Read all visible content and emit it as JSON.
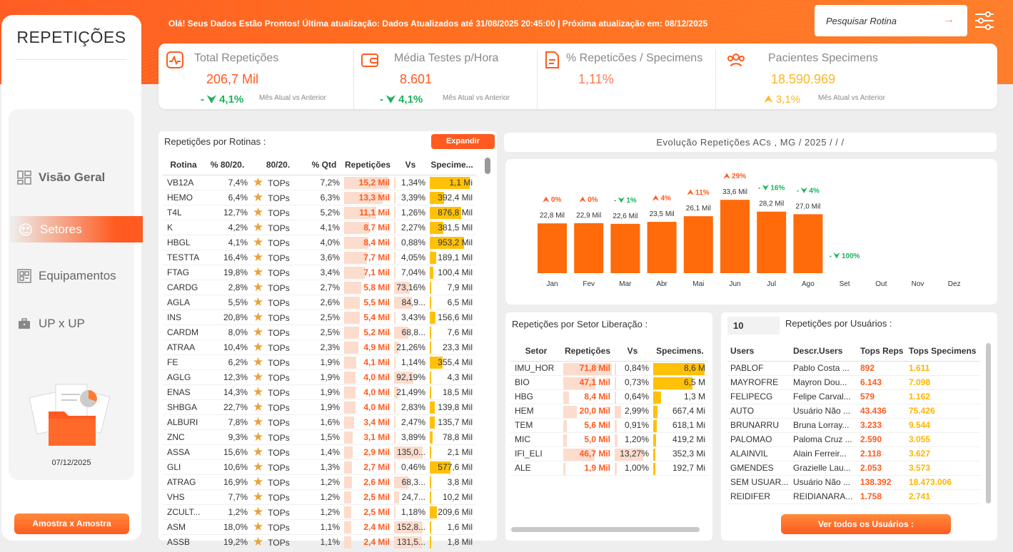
{
  "header": {
    "message": "Olá! Seus Dados Estão Prontos! Última atualização: Dados Atualizados até 31/08/2025 20:45:00 | Próxima atualização em: 08/12/2025",
    "search_placeholder": "Pesquisar Rotina"
  },
  "sidebar": {
    "title": "REPETIÇÕES",
    "items": [
      {
        "label": "Visão Geral",
        "icon": "dashboard-icon"
      },
      {
        "label": "Setores",
        "icon": "palette-icon"
      },
      {
        "label": "Equipamentos",
        "icon": "equipment-icon"
      },
      {
        "label": "UP x UP",
        "icon": "briefcase-icon"
      }
    ],
    "date": "07/12/2025",
    "button": "Amostra x Amostra"
  },
  "kpis": [
    {
      "title": "Total Repetições",
      "value": "206,7 Mil",
      "delta": "- ⮟ 4,1%",
      "compare": "Mês Atual vs Anterior",
      "icon": "pulse-icon"
    },
    {
      "title": "Média Testes p/Hora",
      "value": "8.601",
      "delta": "- ⮟ 4,1%",
      "compare": "Mês Atual vs Anterior",
      "icon": "wallet-icon"
    },
    {
      "title": "% Repeticões / Specimens",
      "value": "1,11%",
      "delta": "",
      "compare": "",
      "icon": "document-icon"
    },
    {
      "title": "Pacientes Specimens",
      "value": "18.590.969",
      "delta": "⮝ 3,1%",
      "compare": "Mês Atual vs Anterior",
      "icon": "users-icon"
    }
  ],
  "rotinas": {
    "title": "Repetições por Rotinas :",
    "expand": "Expandir",
    "columns": [
      "Rotina",
      "% 80/20.",
      "80/20.",
      "% Qtd",
      "Repetições",
      "Vs",
      "Specime..."
    ],
    "rows": [
      [
        "VB12A",
        "7,4%",
        "TOPs",
        "7,2%",
        "15,2 Mil",
        "1,34%",
        "1,1 Mi",
        1.0,
        0.01,
        0.96
      ],
      [
        "HEMO",
        "6,4%",
        "TOPs",
        "6,3%",
        "13,3 Mil",
        "3,39%",
        "392,4 Mil",
        0.875,
        0.025,
        0.34
      ],
      [
        "T4L",
        "12,7%",
        "TOPs",
        "5,2%",
        "11,1 Mil",
        "1,26%",
        "876,8 Mil",
        0.73,
        0.01,
        0.76
      ],
      [
        "K",
        "4,2%",
        "TOPs",
        "4,1%",
        "8,7 Mil",
        "2,27%",
        "381,5 Mil",
        0.57,
        0.017,
        0.33
      ],
      [
        "HBGL",
        "4,1%",
        "TOPs",
        "4,0%",
        "8,4 Mil",
        "0,88%",
        "953,2 Mil",
        0.55,
        0.007,
        0.83
      ],
      [
        "TESTTA",
        "16,4%",
        "TOPs",
        "3,6%",
        "7,7 Mil",
        "4,05%",
        "189,1 Mil",
        0.51,
        0.03,
        0.16
      ],
      [
        "FTAG",
        "19,8%",
        "TOPs",
        "3,4%",
        "7,1 Mil",
        "7,04%",
        "100,4 Mil",
        0.47,
        0.052,
        0.09
      ],
      [
        "CARDG",
        "2,8%",
        "TOPs",
        "2,7%",
        "5,8 Mil",
        "73,16%",
        "7,9 Mil",
        0.38,
        0.54,
        0.01
      ],
      [
        "AGLA",
        "5,5%",
        "TOPs",
        "2,6%",
        "5,5 Mil",
        "84,9...",
        "6,5 Mil",
        0.36,
        0.63,
        0.01
      ],
      [
        "INS",
        "20,8%",
        "TOPs",
        "2,5%",
        "5,4 Mil",
        "3,43%",
        "156,6 Mil",
        0.355,
        0.025,
        0.14
      ],
      [
        "CARDM",
        "8,0%",
        "TOPs",
        "2,5%",
        "5,2 Mil",
        "68,8...",
        "7,6 Mil",
        0.34,
        0.51,
        0.01
      ],
      [
        "ATRAA",
        "10,4%",
        "TOPs",
        "2,3%",
        "4,9 Mil",
        "21,26%",
        "23,3 Mil",
        0.32,
        0.16,
        0.02
      ],
      [
        "FE",
        "6,2%",
        "TOPs",
        "1,9%",
        "4,1 Mil",
        "1,14%",
        "355,4 Mil",
        0.27,
        0.008,
        0.31
      ],
      [
        "AGLG",
        "12,3%",
        "TOPs",
        "1,9%",
        "4,0 Mil",
        "92,19%",
        "4,3 Mil",
        0.26,
        0.68,
        0.0
      ],
      [
        "ENAS",
        "14,3%",
        "TOPs",
        "1,9%",
        "4,0 Mil",
        "21,49%",
        "18,5 Mil",
        0.26,
        0.16,
        0.02
      ],
      [
        "SHBGA",
        "22,7%",
        "TOPs",
        "1,9%",
        "4,0 Mil",
        "2,83%",
        "139,8 Mil",
        0.26,
        0.02,
        0.12
      ],
      [
        "ALBURI",
        "7,8%",
        "TOPs",
        "1,6%",
        "3,4 Mil",
        "2,47%",
        "135,7 Mil",
        0.22,
        0.018,
        0.12
      ],
      [
        "ZNC",
        "9,3%",
        "TOPs",
        "1,5%",
        "3,1 Mil",
        "3,89%",
        "78,8 Mil",
        0.2,
        0.029,
        0.07
      ],
      [
        "ASSA",
        "15,6%",
        "TOPs",
        "1,4%",
        "2,9 Mil",
        "135,0...",
        "2,1 Mil",
        0.19,
        1.0,
        0.0
      ],
      [
        "GLI",
        "10,6%",
        "TOPs",
        "1,3%",
        "2,7 Mil",
        "0,46%",
        "577,6 Mil",
        0.18,
        0.003,
        0.5
      ],
      [
        "ATRAG",
        "16,9%",
        "TOPs",
        "1,2%",
        "2,6 Mil",
        "68,3...",
        "3,8 Mil",
        0.17,
        0.5,
        0.0
      ],
      [
        "VHS",
        "7,7%",
        "TOPs",
        "1,2%",
        "2,5 Mil",
        "24,7...",
        "10,2 Mil",
        0.165,
        0.18,
        0.01
      ],
      [
        "ZCULT...",
        "1,2%",
        "TOPs",
        "1,2%",
        "2,5 Mil",
        "1,18%",
        "209,6 Mil",
        0.165,
        0.009,
        0.18
      ],
      [
        "ASM",
        "18,0%",
        "TOPs",
        "1,1%",
        "2,4 Mil",
        "152,8...",
        "1,6 Mil",
        0.16,
        1.0,
        0.0
      ],
      [
        "ASSB",
        "19,2%",
        "TOPs",
        "1,1%",
        "2,4 Mil",
        "131,5...",
        "1,8 Mil",
        0.16,
        0.97,
        0.0
      ]
    ]
  },
  "chart_data": {
    "type": "bar",
    "title": "Evolução Repetições ACs , MG / 2025 / / /",
    "categories": [
      "Jan",
      "Fev",
      "Mar",
      "Abr",
      "Mai",
      "Jun",
      "Jul",
      "Ago",
      "Set",
      "Out",
      "Nov",
      "Dez"
    ],
    "values": [
      22.8,
      22.9,
      22.6,
      23.5,
      26.1,
      33.6,
      28.2,
      27.0,
      null,
      null,
      null,
      null
    ],
    "value_labels": [
      "22,8 Mil",
      "22,9 Mil",
      "22,6 Mil",
      "23,5 Mil",
      "26,1 Mil",
      "33,6 Mil",
      "28,2 Mil",
      "27,0 Mil",
      "",
      "",
      "",
      ""
    ],
    "variations": [
      "⮝ 0%",
      "⮝ 0%",
      "- ⮟ 1%",
      "⮝ 4%",
      "⮝ 11%",
      "⮝ 29%",
      "- ⮟ 16%",
      "- ⮟ 4%",
      "- ⮟ 100%",
      "",
      "",
      ""
    ],
    "var_colors": [
      "#ff5a1f",
      "#ff5a1f",
      "#1bb35a",
      "#ff5a1f",
      "#ff5a1f",
      "#ff5a1f",
      "#1bb35a",
      "#1bb35a",
      "#1bb35a",
      "",
      "",
      ""
    ],
    "ylim": [
      0,
      40
    ],
    "bar_color": "#ff6a0a"
  },
  "setor": {
    "title": "Repetições por Setor Liberação  :",
    "columns": [
      "Setor",
      "Repetições",
      "Vs",
      "Specimens."
    ],
    "rows": [
      [
        "IMU_HOR",
        "71,8 Mil",
        "0,84%",
        "8,6 M",
        1.0,
        0.06,
        1.0
      ],
      [
        "BIO",
        "47,1 Mil",
        "0,73%",
        "6,5 M",
        0.66,
        0.055,
        0.76
      ],
      [
        "HBG",
        "8,4 Mil",
        "0,64%",
        "1,3 M",
        0.12,
        0.048,
        0.15
      ],
      [
        "HEM",
        "20,0 Mil",
        "2,99%",
        "667,4 Mi",
        0.28,
        0.225,
        0.08
      ],
      [
        "TEM",
        "5,6 Mil",
        "0,91%",
        "618,1 Mi",
        0.08,
        0.07,
        0.07
      ],
      [
        "MIC",
        "5,0 Mil",
        "1,20%",
        "419,2 Mi",
        0.07,
        0.09,
        0.05
      ],
      [
        "IFI_ELI",
        "46,7 Mil",
        "13,27%",
        "352,3 Mi",
        0.65,
        1.0,
        0.04
      ],
      [
        "ALE",
        "1,9 Mil",
        "1,00%",
        "192,7 Mi",
        0.03,
        0.075,
        0.02
      ]
    ]
  },
  "usuarios": {
    "title": "Repetições por Usuários  :",
    "topn": "10",
    "columns": [
      "Users",
      "Descr.Users",
      "Tops Reps",
      "Tops Specimens"
    ],
    "rows": [
      [
        "PABLOF",
        "Pablo Costa ...",
        "892",
        "1.611"
      ],
      [
        "MAYROFRE",
        "Mayron Dou...",
        "6.143",
        "7.098"
      ],
      [
        "FELIPECG",
        "Felipe Carval...",
        "579",
        "1.162"
      ],
      [
        "AUTO",
        "Usuário Não ...",
        "43.436",
        "75.426"
      ],
      [
        "BRUNARRU",
        "Bruna Lorray...",
        "3.233",
        "9.544"
      ],
      [
        "PALOMAO",
        "Paloma Cruz ...",
        "2.590",
        "3.055"
      ],
      [
        "ALAINVIL",
        "Alain Ferreir...",
        "2.118",
        "3.627"
      ],
      [
        "GMENDES",
        "Grazielle Lau...",
        "2.053",
        "3.573"
      ],
      [
        "SEM USUAR...",
        "Usuário Não ...",
        "138.392",
        "18.473.006"
      ],
      [
        "REIDIFER",
        "REIDIANARA...",
        "1.758",
        "2.741"
      ]
    ],
    "button": "Ver todos os Usuários :"
  }
}
